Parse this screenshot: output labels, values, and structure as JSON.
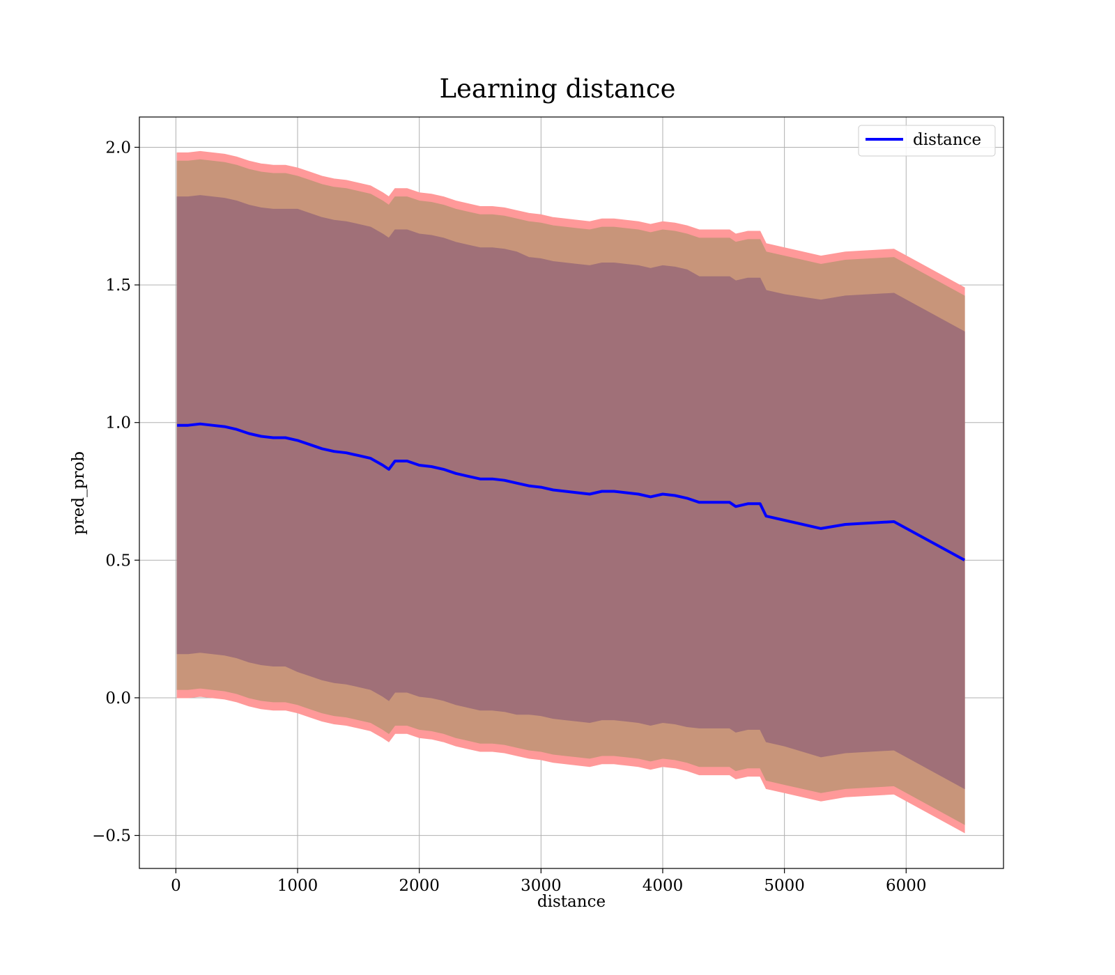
{
  "chart_data": {
    "type": "line",
    "title": "Learning distance",
    "xlabel": "distance",
    "ylabel": "pred_prob",
    "xlim": [
      -300,
      6800
    ],
    "ylim": [
      -0.62,
      2.11
    ],
    "xticks": [
      0,
      1000,
      2000,
      3000,
      4000,
      5000,
      6000
    ],
    "xtick_labels": [
      "0",
      "1000",
      "2000",
      "3000",
      "4000",
      "5000",
      "6000"
    ],
    "yticks": [
      -0.5,
      0.0,
      0.5,
      1.0,
      1.5,
      2.0
    ],
    "ytick_labels": [
      "−0.5",
      "0.0",
      "0.5",
      "1.0",
      "1.5",
      "2.0"
    ],
    "grid": true,
    "legend": {
      "position": "top-right",
      "entries": [
        "distance"
      ]
    },
    "colors": {
      "line": "#0000ff",
      "band_outer": "#ff9999",
      "band_middle": "#c8957a",
      "band_inner": "#a07078"
    },
    "x": [
      10,
      100,
      200,
      300,
      400,
      500,
      600,
      700,
      800,
      900,
      1000,
      1100,
      1200,
      1300,
      1400,
      1500,
      1600,
      1700,
      1750,
      1800,
      1900,
      2000,
      2100,
      2200,
      2300,
      2400,
      2500,
      2600,
      2700,
      2800,
      2900,
      3000,
      3100,
      3200,
      3300,
      3400,
      3500,
      3600,
      3700,
      3800,
      3900,
      4000,
      4100,
      4200,
      4300,
      4400,
      4550,
      4600,
      4700,
      4800,
      4850,
      5000,
      5300,
      5500,
      5900,
      6480
    ],
    "series": [
      {
        "name": "distance",
        "values": [
          0.99,
          0.99,
          0.995,
          0.99,
          0.985,
          0.975,
          0.96,
          0.95,
          0.945,
          0.945,
          0.935,
          0.92,
          0.905,
          0.895,
          0.89,
          0.88,
          0.87,
          0.845,
          0.83,
          0.86,
          0.86,
          0.845,
          0.84,
          0.83,
          0.815,
          0.805,
          0.795,
          0.795,
          0.79,
          0.78,
          0.77,
          0.765,
          0.755,
          0.75,
          0.745,
          0.74,
          0.75,
          0.75,
          0.745,
          0.74,
          0.73,
          0.74,
          0.735,
          0.725,
          0.71,
          0.71,
          0.71,
          0.695,
          0.705,
          0.705,
          0.66,
          0.645,
          0.615,
          0.63,
          0.64,
          0.5
        ],
        "bands": [
          {
            "name": "inner",
            "halfwidth": [
              0.83,
              0.83,
              0.83,
              0.83,
              0.83,
              0.83,
              0.83,
              0.83,
              0.83,
              0.83,
              0.84,
              0.84,
              0.84,
              0.84,
              0.84,
              0.84,
              0.84,
              0.84,
              0.84,
              0.84,
              0.84,
              0.84,
              0.84,
              0.84,
              0.84,
              0.84,
              0.84,
              0.84,
              0.84,
              0.84,
              0.83,
              0.83,
              0.83,
              0.83,
              0.83,
              0.83,
              0.83,
              0.83,
              0.83,
              0.83,
              0.83,
              0.83,
              0.83,
              0.83,
              0.82,
              0.82,
              0.82,
              0.82,
              0.82,
              0.82,
              0.82,
              0.82,
              0.83,
              0.83,
              0.83,
              0.83
            ]
          },
          {
            "name": "middle",
            "halfwidth": [
              0.96,
              0.96,
              0.96,
              0.96,
              0.96,
              0.96,
              0.96,
              0.96,
              0.96,
              0.96,
              0.96,
              0.96,
              0.96,
              0.96,
              0.96,
              0.96,
              0.96,
              0.96,
              0.96,
              0.96,
              0.96,
              0.96,
              0.96,
              0.96,
              0.96,
              0.96,
              0.96,
              0.96,
              0.96,
              0.96,
              0.96,
              0.96,
              0.96,
              0.96,
              0.96,
              0.96,
              0.96,
              0.96,
              0.96,
              0.96,
              0.96,
              0.96,
              0.96,
              0.96,
              0.96,
              0.96,
              0.96,
              0.96,
              0.96,
              0.96,
              0.96,
              0.96,
              0.96,
              0.96,
              0.96,
              0.96
            ]
          },
          {
            "name": "outer",
            "halfwidth": [
              0.99,
              0.99,
              0.99,
              0.99,
              0.99,
              0.99,
              0.99,
              0.99,
              0.99,
              0.99,
              0.99,
              0.99,
              0.99,
              0.99,
              0.99,
              0.99,
              0.99,
              0.99,
              0.99,
              0.99,
              0.99,
              0.99,
              0.99,
              0.99,
              0.99,
              0.99,
              0.99,
              0.99,
              0.99,
              0.99,
              0.99,
              0.99,
              0.99,
              0.99,
              0.99,
              0.99,
              0.99,
              0.99,
              0.99,
              0.99,
              0.99,
              0.99,
              0.99,
              0.99,
              0.99,
              0.99,
              0.99,
              0.99,
              0.99,
              0.99,
              0.99,
              0.99,
              0.99,
              0.99,
              0.99,
              0.99
            ]
          }
        ]
      }
    ]
  }
}
